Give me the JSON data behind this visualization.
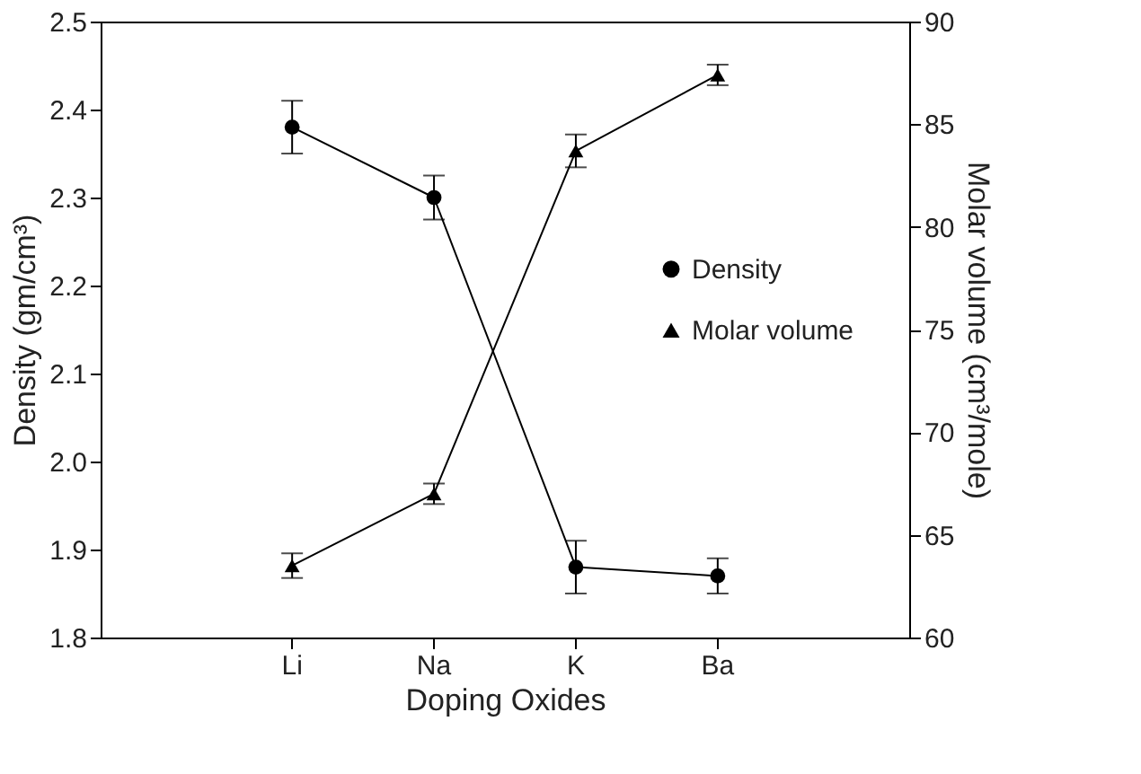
{
  "chart_data": {
    "type": "line",
    "xlabel": "Doping Oxides",
    "ylabel": "Density (gm/cm³)",
    "y2label": "Molar volume (cm³/mole)",
    "categories": [
      "Li",
      "Na",
      "K",
      "Ba"
    ],
    "series": [
      {
        "name": "Density",
        "color": "#000000",
        "marker": "circle",
        "values": [
          2.38,
          2.3,
          1.88,
          1.87
        ],
        "errors": [
          0.03,
          0.025,
          0.03,
          0.02
        ]
      },
      {
        "name": "Molar volume",
        "color": "#000000",
        "marker": "triangle",
        "axis": "y2",
        "values": [
          63.5,
          67.0,
          83.7,
          87.4
        ],
        "errors": [
          0.6,
          0.5,
          0.8,
          0.5
        ]
      }
    ],
    "ylim": [
      1.8,
      2.5
    ],
    "yticks": [
      1.8,
      1.9,
      {
        "value": 2,
        "label": "2.0"
      },
      2.1,
      2.2,
      2.3,
      2.4,
      2.5
    ],
    "y2lim": [
      60,
      90
    ],
    "y2ticks": [
      60,
      65,
      70,
      75,
      80,
      85,
      90
    ],
    "grid": false,
    "legend": "right",
    "line_style": "solid"
  }
}
